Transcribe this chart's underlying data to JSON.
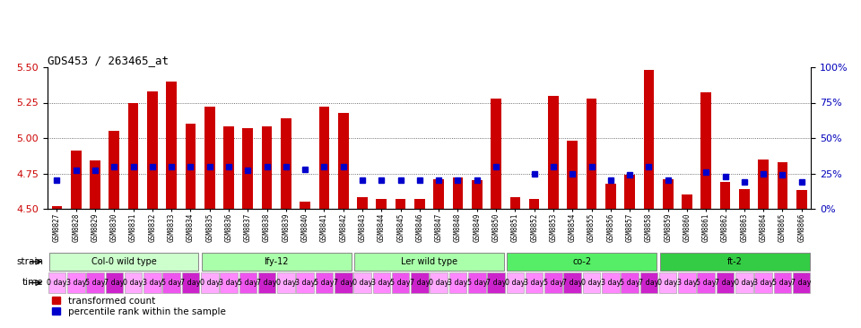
{
  "title": "GDS453 / 263465_at",
  "samples": [
    "GSM8827",
    "GSM8828",
    "GSM8829",
    "GSM8830",
    "GSM8831",
    "GSM8832",
    "GSM8833",
    "GSM8834",
    "GSM8835",
    "GSM8836",
    "GSM8837",
    "GSM8838",
    "GSM8839",
    "GSM8840",
    "GSM8841",
    "GSM8842",
    "GSM8843",
    "GSM8844",
    "GSM8845",
    "GSM8846",
    "GSM8847",
    "GSM8848",
    "GSM8849",
    "GSM8850",
    "GSM8851",
    "GSM8852",
    "GSM8853",
    "GSM8854",
    "GSM8855",
    "GSM8856",
    "GSM8857",
    "GSM8858",
    "GSM8859",
    "GSM8860",
    "GSM8861",
    "GSM8862",
    "GSM8863",
    "GSM8864",
    "GSM8865",
    "GSM8866"
  ],
  "bar_values": [
    4.52,
    4.91,
    4.84,
    5.05,
    5.25,
    5.33,
    5.4,
    5.1,
    5.22,
    5.08,
    5.07,
    5.08,
    5.14,
    4.55,
    5.22,
    5.18,
    4.58,
    4.57,
    4.57,
    4.57,
    4.71,
    4.72,
    4.7,
    5.28,
    4.58,
    4.57,
    5.3,
    4.98,
    5.28,
    4.68,
    4.74,
    5.48,
    4.71,
    4.6,
    5.32,
    4.69,
    4.64,
    4.85,
    4.83,
    4.63
  ],
  "percentile_values": [
    20,
    27,
    27,
    30,
    30,
    30,
    30,
    30,
    30,
    30,
    27,
    30,
    30,
    28,
    30,
    30,
    20,
    20,
    20,
    20,
    20,
    20,
    20,
    30,
    null,
    25,
    30,
    25,
    30,
    20,
    24,
    30,
    20,
    null,
    26,
    23,
    19,
    25,
    24,
    19
  ],
  "ylim_left": [
    4.5,
    5.5
  ],
  "ylim_right": [
    0,
    100
  ],
  "yticks_left": [
    4.5,
    4.75,
    5.0,
    5.25,
    5.5
  ],
  "yticks_right": [
    0,
    25,
    50,
    75,
    100
  ],
  "bar_color": "#cc0000",
  "percentile_color": "#0000cc",
  "bar_bottom": 4.5,
  "strains": [
    {
      "label": "Col-0 wild type",
      "start": 0,
      "end": 8,
      "color": "#ccffcc"
    },
    {
      "label": "lfy-12",
      "start": 8,
      "end": 16,
      "color": "#aaffaa"
    },
    {
      "label": "Ler wild type",
      "start": 16,
      "end": 24,
      "color": "#aaffaa"
    },
    {
      "label": "co-2",
      "start": 24,
      "end": 32,
      "color": "#55ee66"
    },
    {
      "label": "ft-2",
      "start": 32,
      "end": 40,
      "color": "#33cc44"
    }
  ],
  "time_colors": [
    "#ffaaff",
    "#ff88ff",
    "#ee55ee",
    "#cc22cc"
  ],
  "time_labels": [
    "0 day",
    "3 day",
    "5 day",
    "7 day"
  ],
  "bg_color": "#ffffff"
}
